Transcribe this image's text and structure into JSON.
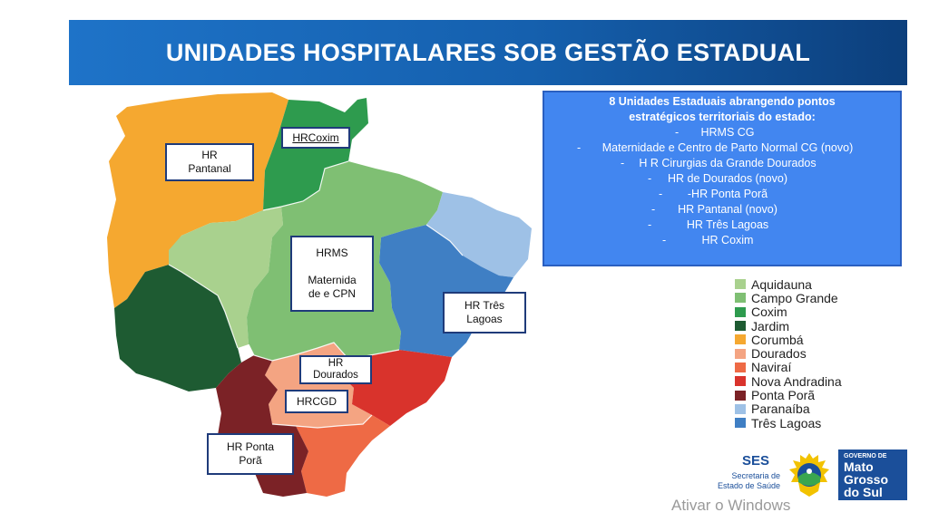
{
  "title": "UNIDADES HOSPITALARES SOB GESTÃO ESTADUAL",
  "info_box": {
    "heading_line1": "8 Unidades Estaduais abrangendo pontos",
    "heading_line2": "estratégicos territoriais do estado:",
    "items": [
      "HRMS CG",
      "Maternidade e Centro de Parto Normal CG (novo)",
      "H R Cirurgias da Grande Dourados",
      "HR de Dourados (novo)",
      "-HR Ponta Porã",
      "HR Pantanal (novo)",
      "HR Três Lagoas",
      "HR Coxim"
    ],
    "bullet": "-"
  },
  "map_labels": {
    "pantanal": "HR\nPantanal",
    "coxim": "HRCoxim",
    "hrms": "HRMS\n\nMaternida\nde e CPN",
    "tres_lagoas": "HR Três\nLagoas",
    "dourados": "HR\nDourados",
    "hrcgd": "HRCGD",
    "ponta_pora": "HR Ponta\nPorã"
  },
  "legend": [
    {
      "label": "Aquidauna",
      "color": "#a9d18e"
    },
    {
      "label": "Campo Grande",
      "color": "#7fbf73"
    },
    {
      "label": "Coxim",
      "color": "#2e9b4e"
    },
    {
      "label": "Jardim",
      "color": "#1e5b32"
    },
    {
      "label": "Corumbá",
      "color": "#f5a830"
    },
    {
      "label": "Dourados",
      "color": "#f4a482"
    },
    {
      "label": "Naviraí",
      "color": "#ee6a45"
    },
    {
      "label": "Nova Andradina",
      "color": "#d9332c"
    },
    {
      "label": "Ponta Porã",
      "color": "#7b2226"
    },
    {
      "label": "Paranaíba",
      "color": "#9ec1e6"
    },
    {
      "label": "Três Lagoas",
      "color": "#3f7fc4"
    }
  ],
  "logos": {
    "ses": "SES",
    "ses_sub": "Secretaria de Estado de Saúde",
    "gov_small": "GOVERNO DE",
    "gov_big": "Mato\nGrosso\ndo Sul"
  },
  "watermark": "Ativar o Windows"
}
